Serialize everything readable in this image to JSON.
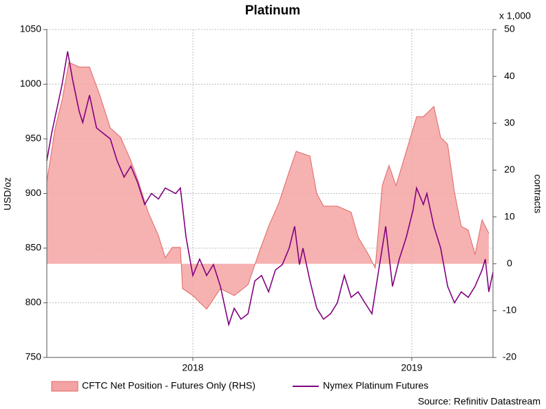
{
  "chart_data": {
    "type": "line",
    "title": "Platinum",
    "y_label": "USD/oz",
    "y2_label": "contracts",
    "y2_unit_note": "x 1,000",
    "source": "Source: Refinitiv Datastream",
    "xlim": [
      2017.333,
      2019.371
    ],
    "xticks": [
      2018,
      2019
    ],
    "ylim": [
      750,
      1050
    ],
    "yticks": [
      750,
      800,
      850,
      900,
      950,
      1000,
      1050
    ],
    "y2lim": [
      -20,
      50
    ],
    "y2ticks": [
      -20,
      -10,
      0,
      10,
      20,
      30,
      40,
      50
    ],
    "grid": true,
    "legend": "bottom",
    "series": [
      {
        "name": "CFTC Net Position - Futures Only (RHS)",
        "type": "area",
        "axis": "y2",
        "color": "#f4a3a3",
        "line_color": "#e06666",
        "x": [
          2017.333,
          2017.371,
          2017.403,
          2017.434,
          2017.481,
          2017.528,
          2017.575,
          2017.623,
          2017.67,
          2017.717,
          2017.748,
          2017.796,
          2017.843,
          2017.874,
          2017.906,
          2017.943,
          2017.953,
          2018.0,
          2018.063,
          2018.126,
          2018.189,
          2018.252,
          2018.299,
          2018.346,
          2018.393,
          2018.44,
          2018.472,
          2018.535,
          2018.566,
          2018.597,
          2018.66,
          2018.723,
          2018.755,
          2018.802,
          2018.833,
          2018.865,
          2018.896,
          2018.928,
          2018.975,
          2019.022,
          2019.053,
          2019.101,
          2019.132,
          2019.164,
          2019.195,
          2019.226,
          2019.258,
          2019.289,
          2019.321,
          2019.352
        ],
        "values": [
          17.5,
          29,
          35,
          43,
          42,
          42,
          36,
          29,
          27,
          22,
          18,
          11,
          6,
          1.3,
          3.5,
          3.5,
          -5.3,
          -6.8,
          -9.7,
          -5.3,
          -6.8,
          -4.5,
          2,
          8,
          13,
          19.7,
          24,
          23,
          15,
          12.3,
          12.3,
          11,
          5.7,
          2,
          -0.9,
          16.7,
          21,
          16.7,
          24,
          31.4,
          31.4,
          33.6,
          27,
          25.5,
          15.3,
          8,
          7.2,
          2,
          9.4,
          6.5
        ]
      },
      {
        "name": "Nymex Platinum Futures",
        "type": "line",
        "axis": "y",
        "color": "#800080",
        "x": [
          2017.333,
          2017.355,
          2017.371,
          2017.403,
          2017.428,
          2017.45,
          2017.481,
          2017.497,
          2017.528,
          2017.56,
          2017.591,
          2017.623,
          2017.654,
          2017.686,
          2017.717,
          2017.748,
          2017.78,
          2017.811,
          2017.843,
          2017.874,
          2017.921,
          2017.943,
          2017.969,
          2018.0,
          2018.031,
          2018.063,
          2018.094,
          2018.126,
          2018.164,
          2018.189,
          2018.22,
          2018.252,
          2018.283,
          2018.314,
          2018.346,
          2018.377,
          2018.409,
          2018.44,
          2018.465,
          2018.487,
          2018.503,
          2018.535,
          2018.566,
          2018.597,
          2018.629,
          2018.66,
          2018.692,
          2018.723,
          2018.755,
          2018.786,
          2018.818,
          2018.849,
          2018.881,
          2018.912,
          2018.943,
          2018.975,
          2019.006,
          2019.022,
          2019.053,
          2019.069,
          2019.101,
          2019.132,
          2019.164,
          2019.195,
          2019.226,
          2019.258,
          2019.289,
          2019.321,
          2019.336,
          2019.352,
          2019.371
        ],
        "values": [
          930,
          955,
          970,
          1000,
          1030,
          1005,
          975,
          965,
          990,
          960,
          955,
          950,
          930,
          915,
          925,
          910,
          890,
          900,
          895,
          905,
          900,
          905,
          860,
          825,
          840,
          825,
          835,
          815,
          780,
          795,
          785,
          790,
          820,
          825,
          810,
          830,
          835,
          850,
          870,
          835,
          850,
          820,
          795,
          785,
          790,
          800,
          825,
          805,
          810,
          800,
          790,
          830,
          870,
          815,
          840,
          860,
          885,
          905,
          890,
          900,
          870,
          850,
          815,
          800,
          810,
          805,
          815,
          830,
          840,
          810,
          828
        ]
      }
    ]
  }
}
